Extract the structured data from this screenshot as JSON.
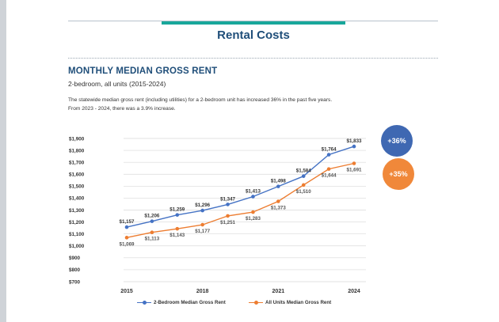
{
  "header": {
    "title": "Rental Costs"
  },
  "section": {
    "title": "MONTHLY MEDIAN GROSS RENT",
    "subtitle": "2-bedroom, all units  (2015-2024)",
    "description_line1": "The statewide median gross rent (including utilities) for a 2-bedroom unit has increased 36% in the past five years.",
    "description_line2": "From 2023 - 2024, there was a 3.9% increase."
  },
  "badges": {
    "two_bedroom": {
      "label": "+36%",
      "color": "#3f68b2"
    },
    "all_units": {
      "label": "+35%",
      "color": "#f0883a"
    }
  },
  "chart_data": {
    "type": "line",
    "title": "",
    "xlabel": "",
    "ylabel": "",
    "x": [
      2015,
      2016,
      2017,
      2018,
      2019,
      2020,
      2021,
      2022,
      2023,
      2024
    ],
    "x_tick_labels": [
      {
        "x": 2015,
        "label": "2015"
      },
      {
        "x": 2018,
        "label": "2018"
      },
      {
        "x": 2021,
        "label": "2021"
      },
      {
        "x": 2024,
        "label": "2024"
      }
    ],
    "ylim": [
      700,
      1900
    ],
    "y_ticks": [
      700,
      800,
      900,
      1000,
      1100,
      1200,
      1300,
      1400,
      1500,
      1600,
      1700,
      1800,
      1900
    ],
    "y_tick_labels": [
      "$700",
      "$800",
      "$900",
      "$1,000",
      "$1,100",
      "$1,200",
      "$1,300",
      "$1,400",
      "$1,500",
      "$1,600",
      "$1,700",
      "$1,800",
      "$1,900"
    ],
    "grid": true,
    "legend_position": "bottom",
    "series": [
      {
        "name": "2-Bedroom Median Gross Rent",
        "color": "#4472c4",
        "label_position": "above",
        "values": [
          1157,
          1206,
          1259,
          1296,
          1347,
          1413,
          1498,
          1584,
          1764,
          1833
        ],
        "labels": [
          "$1,157",
          "$1,206",
          "$1,259",
          "$1,296",
          "$1,347",
          "$1,413",
          "$1,498",
          "$1,584",
          "$1,764",
          "$1,833"
        ]
      },
      {
        "name": "All Units Median Gross Rent",
        "color": "#ed7d31",
        "label_position": "below",
        "values": [
          1069,
          1113,
          1143,
          1177,
          1251,
          1283,
          1373,
          1510,
          1644,
          1691
        ],
        "labels": [
          "$1,069",
          "$1,113",
          "$1,143",
          "$1,177",
          "$1,251",
          "$1,283",
          "$1,373",
          "$1,510",
          "$1,644",
          "$1,691"
        ]
      }
    ]
  }
}
